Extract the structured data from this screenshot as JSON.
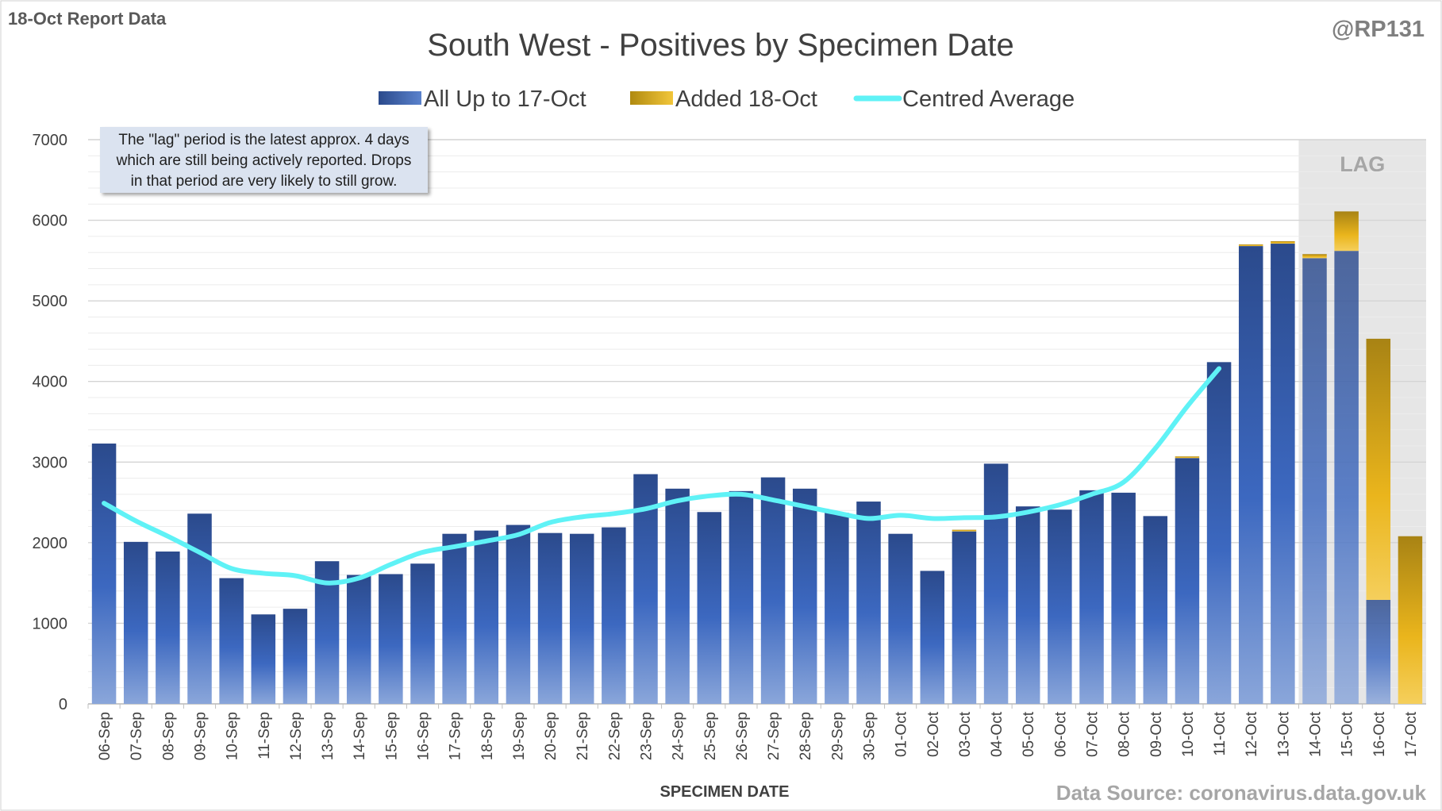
{
  "header": {
    "report_label": "18-Oct Report Data",
    "handle": "@RP131"
  },
  "note": {
    "line1": "The \"lag\" period is the latest approx. 4 days",
    "line2": "which are still being actively reported. Drops",
    "line3": "in that period are very likely to still grow."
  },
  "lag_label": "LAG",
  "source": "Data Source: coronavirus.data.gov.uk",
  "colors": {
    "base_bar": "#3a62b0",
    "added_bar": "#e8b418",
    "average_line": "#5ff2f6",
    "lag_shade": "#e6e6e6"
  },
  "chart_data": {
    "type": "bar",
    "stacked": true,
    "title": "South West - Positives by Specimen Date",
    "xlabel": "SPECIMEN DATE",
    "ylabel": "",
    "ylim": [
      0,
      7000
    ],
    "yticks": [
      0,
      1000,
      2000,
      3000,
      4000,
      5000,
      6000,
      7000
    ],
    "grid": true,
    "legend_position": "top",
    "lag_start": "14-Oct",
    "lag_end": "17-Oct",
    "categories": [
      "06-Sep",
      "07-Sep",
      "08-Sep",
      "09-Sep",
      "10-Sep",
      "11-Sep",
      "12-Sep",
      "13-Sep",
      "14-Sep",
      "15-Sep",
      "16-Sep",
      "17-Sep",
      "18-Sep",
      "19-Sep",
      "20-Sep",
      "21-Sep",
      "22-Sep",
      "23-Sep",
      "24-Sep",
      "25-Sep",
      "26-Sep",
      "27-Sep",
      "28-Sep",
      "29-Sep",
      "30-Sep",
      "01-Oct",
      "02-Oct",
      "03-Oct",
      "04-Oct",
      "05-Oct",
      "06-Oct",
      "07-Oct",
      "08-Oct",
      "09-Oct",
      "10-Oct",
      "11-Oct",
      "12-Oct",
      "13-Oct",
      "14-Oct",
      "15-Oct",
      "16-Oct",
      "17-Oct"
    ],
    "series": [
      {
        "name": "All Up to 17-Oct",
        "values": [
          3230,
          2010,
          1890,
          2360,
          1560,
          1110,
          1180,
          1770,
          1600,
          1610,
          1740,
          2110,
          2150,
          2220,
          2120,
          2110,
          2190,
          2850,
          2670,
          2380,
          2640,
          2810,
          2670,
          2370,
          2510,
          2110,
          1650,
          2140,
          2980,
          2450,
          2410,
          2650,
          2620,
          2330,
          3050,
          4240,
          5680,
          5710,
          5530,
          5620,
          1290,
          0
        ]
      },
      {
        "name": "Added 18-Oct",
        "values": [
          0,
          0,
          0,
          0,
          0,
          0,
          0,
          0,
          0,
          0,
          0,
          0,
          0,
          0,
          0,
          0,
          0,
          0,
          0,
          0,
          0,
          0,
          0,
          0,
          0,
          0,
          0,
          20,
          0,
          0,
          0,
          0,
          0,
          0,
          20,
          0,
          20,
          30,
          50,
          490,
          3240,
          2080
        ]
      },
      {
        "name": "Centred Average",
        "type": "line",
        "values": [
          2490,
          2270,
          2080,
          1880,
          1680,
          1620,
          1590,
          1500,
          1560,
          1730,
          1880,
          1950,
          2020,
          2100,
          2250,
          2320,
          2360,
          2420,
          2520,
          2580,
          2600,
          2530,
          2450,
          2370,
          2300,
          2340,
          2300,
          2310,
          2320,
          2380,
          2470,
          2600,
          2750,
          3170,
          3690,
          4160,
          null,
          null,
          null,
          null,
          null,
          null
        ]
      }
    ]
  }
}
